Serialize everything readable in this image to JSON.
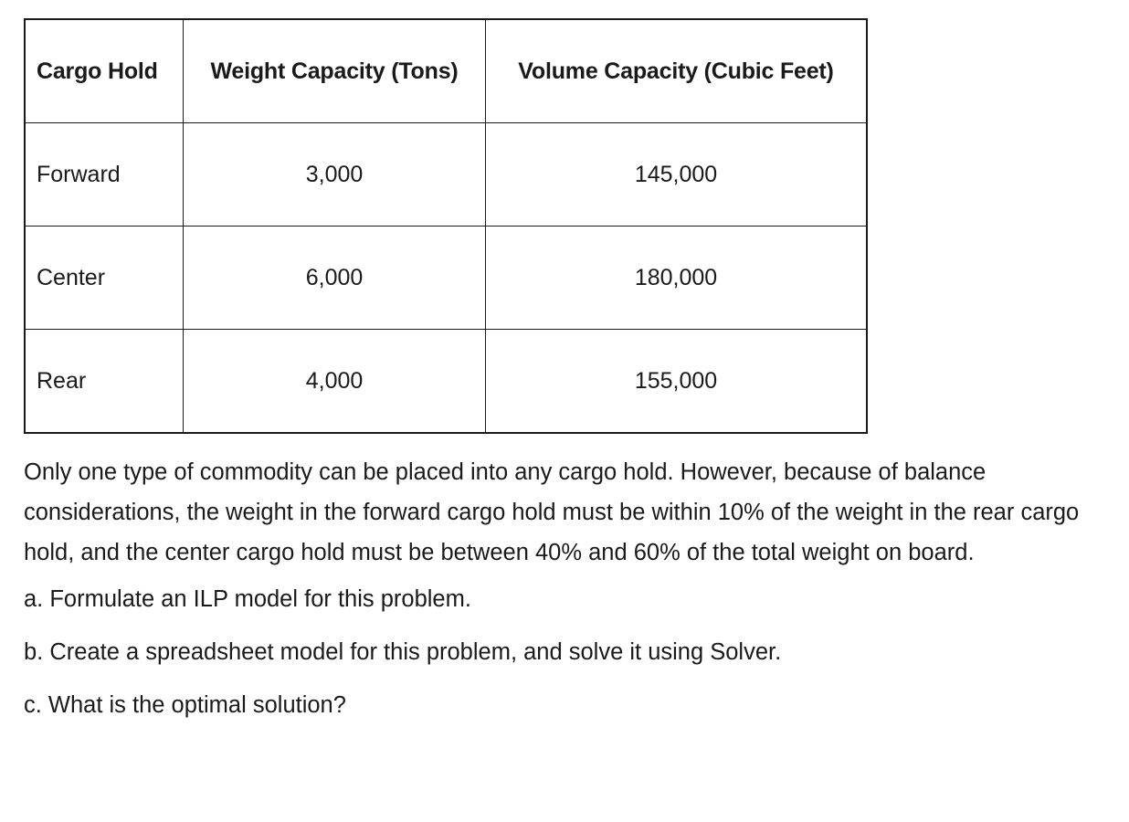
{
  "table": {
    "headers": [
      "Cargo Hold",
      "Weight Capacity (Tons)",
      "Volume Capacity (Cubic Feet)"
    ],
    "rows": [
      {
        "hold": "Forward",
        "weight": "3,000",
        "volume": "145,000"
      },
      {
        "hold": "Center",
        "weight": "6,000",
        "volume": "180,000"
      },
      {
        "hold": "Rear",
        "weight": "4,000",
        "volume": "155,000"
      }
    ]
  },
  "paragraph": "Only one type of commodity can be placed into any cargo hold. However, because of balance considerations, the weight in the forward cargo hold must be within 10% of the weight in the rear cargo hold, and the center cargo hold must be between 40% and 60% of the total weight on board.",
  "questions": [
    "a. Formulate an ILP model for this problem.",
    "b. Create a spreadsheet model for this problem, and solve it using Solver.",
    "c. What is the optimal solution?"
  ]
}
